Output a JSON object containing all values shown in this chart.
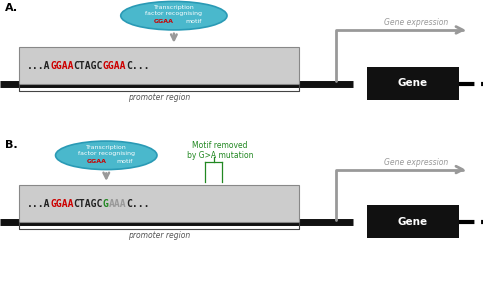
{
  "fig_width": 4.83,
  "fig_height": 2.85,
  "dpi": 100,
  "bg_color": "#ffffff",
  "ellipse_color": "#4ab8cc",
  "ellipse_edge": "#2a9ab5",
  "gray_arrow": "#999999",
  "promoter_box_color": "#cccccc",
  "promoter_box_edge": "#888888",
  "gene_box_color": "#111111",
  "dna_line_color": "#111111",
  "bracket_color": "#444444",
  "red_color": "#cc0000",
  "green_color": "#228822",
  "black_color": "#111111",
  "panel_A_label": "A.",
  "panel_B_label": "B.",
  "promoter_label": "promoter region",
  "gene_label": "Gene",
  "gene_expr_label": "Gene expression",
  "motif_removed_text": [
    "Motif removed",
    "by G>A mutation"
  ],
  "seq_A": {
    "parts": [
      [
        "...A",
        "#222222"
      ],
      [
        "GGAA",
        "#cc0000"
      ],
      [
        "CTAGC",
        "#222222"
      ],
      [
        "GGAA",
        "#cc0000"
      ],
      [
        "C...",
        "#222222"
      ]
    ]
  },
  "seq_B": {
    "parts": [
      [
        "...A",
        "#222222"
      ],
      [
        "GGAA",
        "#cc0000"
      ],
      [
        "CTAGC",
        "#222222"
      ],
      [
        "G",
        "#228822"
      ],
      [
        "AAA",
        "#999999"
      ],
      [
        "C...",
        "#222222"
      ]
    ]
  }
}
